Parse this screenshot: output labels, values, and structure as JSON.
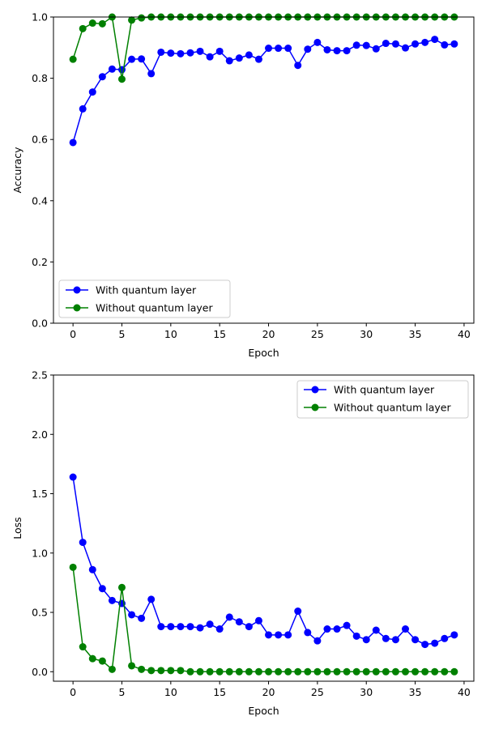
{
  "chart_data": [
    {
      "type": "line",
      "xlabel": "Epoch",
      "ylabel": "Accuracy",
      "xlim": [
        -2,
        41
      ],
      "ylim": [
        0.0,
        1.0
      ],
      "xticks": [
        0,
        5,
        10,
        15,
        20,
        25,
        30,
        35,
        40
      ],
      "yticks": [
        0.0,
        0.2,
        0.4,
        0.6,
        0.8,
        1.0
      ],
      "xtick_labels": [
        "0",
        "5",
        "10",
        "15",
        "20",
        "25",
        "30",
        "35",
        "40"
      ],
      "ytick_labels": [
        "0.0",
        "0.2",
        "0.4",
        "0.6",
        "0.8",
        "1.0"
      ],
      "legend_position": "lower-left",
      "grid": false,
      "x": [
        0,
        1,
        2,
        3,
        4,
        5,
        6,
        7,
        8,
        9,
        10,
        11,
        12,
        13,
        14,
        15,
        16,
        17,
        18,
        19,
        20,
        21,
        22,
        23,
        24,
        25,
        26,
        27,
        28,
        29,
        30,
        31,
        32,
        33,
        34,
        35,
        36,
        37,
        38,
        39
      ],
      "series": [
        {
          "name": "With quantum layer",
          "color": "#0000ff",
          "values": [
            0.59,
            0.7,
            0.755,
            0.805,
            0.83,
            0.828,
            0.862,
            0.863,
            0.815,
            0.885,
            0.882,
            0.88,
            0.883,
            0.888,
            0.87,
            0.888,
            0.857,
            0.866,
            0.876,
            0.862,
            0.898,
            0.898,
            0.898,
            0.842,
            0.895,
            0.917,
            0.893,
            0.89,
            0.89,
            0.908,
            0.907,
            0.896,
            0.914,
            0.912,
            0.899,
            0.912,
            0.917,
            0.927,
            0.909,
            0.912
          ]
        },
        {
          "name": "Without quantum layer",
          "color": "#008000",
          "values": [
            0.862,
            0.962,
            0.98,
            0.978,
            1.0,
            0.797,
            0.99,
            0.997,
            1.0,
            1.0,
            1.0,
            1.0,
            1.0,
            1.0,
            1.0,
            1.0,
            1.0,
            1.0,
            1.0,
            1.0,
            1.0,
            1.0,
            1.0,
            1.0,
            1.0,
            1.0,
            1.0,
            1.0,
            1.0,
            1.0,
            1.0,
            1.0,
            1.0,
            1.0,
            1.0,
            1.0,
            1.0,
            1.0,
            1.0,
            1.0
          ]
        }
      ]
    },
    {
      "type": "line",
      "xlabel": "Epoch",
      "ylabel": "Loss",
      "xlim": [
        -2,
        41
      ],
      "ylim": [
        -0.08,
        2.5
      ],
      "xticks": [
        0,
        5,
        10,
        15,
        20,
        25,
        30,
        35,
        40
      ],
      "yticks": [
        0.0,
        0.5,
        1.0,
        1.5,
        2.0,
        2.5
      ],
      "xtick_labels": [
        "0",
        "5",
        "10",
        "15",
        "20",
        "25",
        "30",
        "35",
        "40"
      ],
      "ytick_labels": [
        "0.0",
        "0.5",
        "1.0",
        "1.5",
        "2.0",
        "2.5"
      ],
      "legend_position": "upper-right",
      "grid": false,
      "x": [
        0,
        1,
        2,
        3,
        4,
        5,
        6,
        7,
        8,
        9,
        10,
        11,
        12,
        13,
        14,
        15,
        16,
        17,
        18,
        19,
        20,
        21,
        22,
        23,
        24,
        25,
        26,
        27,
        28,
        29,
        30,
        31,
        32,
        33,
        34,
        35,
        36,
        37,
        38,
        39
      ],
      "series": [
        {
          "name": "With quantum layer",
          "color": "#0000ff",
          "values": [
            1.64,
            1.09,
            0.86,
            0.7,
            0.6,
            0.575,
            0.48,
            0.45,
            0.61,
            0.38,
            0.38,
            0.38,
            0.38,
            0.37,
            0.4,
            0.36,
            0.46,
            0.42,
            0.38,
            0.43,
            0.31,
            0.31,
            0.31,
            0.51,
            0.33,
            0.26,
            0.36,
            0.36,
            0.39,
            0.3,
            0.27,
            0.35,
            0.28,
            0.27,
            0.36,
            0.27,
            0.23,
            0.24,
            0.28,
            0.31
          ]
        },
        {
          "name": "Without quantum layer",
          "color": "#008000",
          "values": [
            0.88,
            0.21,
            0.11,
            0.09,
            0.02,
            0.71,
            0.05,
            0.02,
            0.01,
            0.01,
            0.01,
            0.01,
            0.0,
            0.0,
            0.0,
            0.0,
            0.0,
            0.0,
            0.0,
            0.0,
            0.0,
            0.0,
            0.0,
            0.0,
            0.0,
            0.0,
            0.0,
            0.0,
            0.0,
            0.0,
            0.0,
            0.0,
            0.0,
            0.0,
            0.0,
            0.0,
            0.0,
            0.0,
            0.0,
            0.0
          ]
        }
      ]
    }
  ]
}
